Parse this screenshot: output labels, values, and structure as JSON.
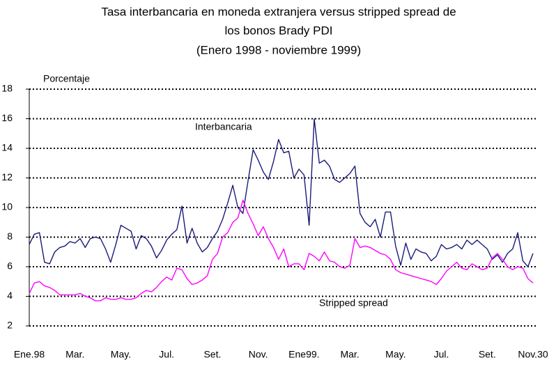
{
  "chart_data": {
    "type": "line",
    "title": [
      "Tasa interbancaria en moneda extranjera versus stripped spread de",
      "los bonos Brady PDI",
      "(Enero 1998 - noviembre 1999)"
    ],
    "y_label": "Porcentaje",
    "annotations": [
      "Interbancaria",
      "Stripped spread"
    ],
    "categories": [
      "Ene.98",
      null,
      null,
      null,
      null,
      null,
      null,
      null,
      null,
      "Mar.",
      null,
      null,
      null,
      null,
      null,
      null,
      null,
      null,
      "May.",
      null,
      null,
      null,
      null,
      null,
      null,
      null,
      null,
      "Jul.",
      null,
      null,
      null,
      null,
      null,
      null,
      null,
      null,
      "Set.",
      null,
      null,
      null,
      null,
      null,
      null,
      null,
      null,
      "Nov.",
      null,
      null,
      null,
      null,
      null,
      null,
      null,
      null,
      "Ene99.",
      null,
      null,
      null,
      null,
      null,
      null,
      null,
      null,
      "Mar.",
      null,
      null,
      null,
      null,
      null,
      null,
      null,
      null,
      "May.",
      null,
      null,
      null,
      null,
      null,
      null,
      null,
      null,
      "Jul.",
      null,
      null,
      null,
      null,
      null,
      null,
      null,
      null,
      "Set.",
      null,
      null,
      null,
      null,
      null,
      null,
      null,
      null,
      "Nov.30"
    ],
    "series": [
      {
        "name": "Interbancaria",
        "color": "#1a1a78",
        "values": [
          7.5,
          8.2,
          8.3,
          6.3,
          6.2,
          7.0,
          7.3,
          7.4,
          7.7,
          7.6,
          7.9,
          7.3,
          7.9,
          8.0,
          7.9,
          7.2,
          6.3,
          7.5,
          8.8,
          8.6,
          8.4,
          7.2,
          8.1,
          7.9,
          7.4,
          6.6,
          7.1,
          7.8,
          8.2,
          8.5,
          10.1,
          7.6,
          8.6,
          7.6,
          7.0,
          7.3,
          7.9,
          8.4,
          9.2,
          10.3,
          11.5,
          10.0,
          9.6,
          11.8,
          13.9,
          13.2,
          12.4,
          11.9,
          13.1,
          14.6,
          13.7,
          13.8,
          12.0,
          12.6,
          12.2,
          8.8,
          16.0,
          13.0,
          13.2,
          12.8,
          11.9,
          11.7,
          12.0,
          12.3,
          12.8,
          9.6,
          9.0,
          8.7,
          9.2,
          8.0,
          9.7,
          9.7,
          7.4,
          6.1,
          7.6,
          6.5,
          7.2,
          7.0,
          6.9,
          6.4,
          6.7,
          7.5,
          7.2,
          7.3,
          7.5,
          7.2,
          7.8,
          7.5,
          7.8,
          7.5,
          7.2,
          6.5,
          6.8,
          6.3,
          6.9,
          7.2,
          8.3,
          6.4,
          6.0,
          6.9
        ]
      },
      {
        "name": "Stripped spread",
        "color": "#ff00ff",
        "values": [
          4.2,
          4.9,
          5.0,
          4.7,
          4.6,
          4.4,
          4.1,
          4.1,
          4.1,
          4.1,
          4.2,
          4.0,
          3.9,
          3.7,
          3.7,
          3.9,
          3.8,
          3.8,
          3.9,
          3.8,
          3.8,
          3.9,
          4.2,
          4.4,
          4.3,
          4.6,
          5.0,
          5.3,
          5.1,
          5.9,
          5.8,
          5.2,
          4.8,
          4.9,
          5.1,
          5.4,
          6.5,
          6.9,
          8.0,
          8.3,
          9.0,
          9.3,
          10.5,
          9.6,
          8.9,
          8.1,
          8.7,
          7.9,
          7.3,
          6.5,
          7.2,
          6.0,
          6.2,
          6.2,
          5.8,
          6.9,
          6.7,
          6.4,
          7.0,
          6.4,
          6.3,
          6.0,
          5.9,
          6.1,
          7.9,
          7.3,
          7.4,
          7.3,
          7.1,
          6.9,
          6.8,
          6.5,
          5.8,
          5.6,
          5.5,
          5.4,
          5.3,
          5.2,
          5.1,
          5.0,
          4.8,
          5.2,
          5.7,
          6.0,
          6.3,
          5.9,
          5.8,
          6.2,
          6.0,
          5.8,
          5.9,
          6.6,
          6.9,
          6.5,
          6.0,
          5.8,
          6.0,
          5.9,
          5.2,
          4.9
        ]
      }
    ],
    "ylim": [
      2,
      18
    ],
    "yticks": [
      2,
      4,
      6,
      8,
      10,
      12,
      14,
      16,
      18
    ],
    "grid": true
  }
}
